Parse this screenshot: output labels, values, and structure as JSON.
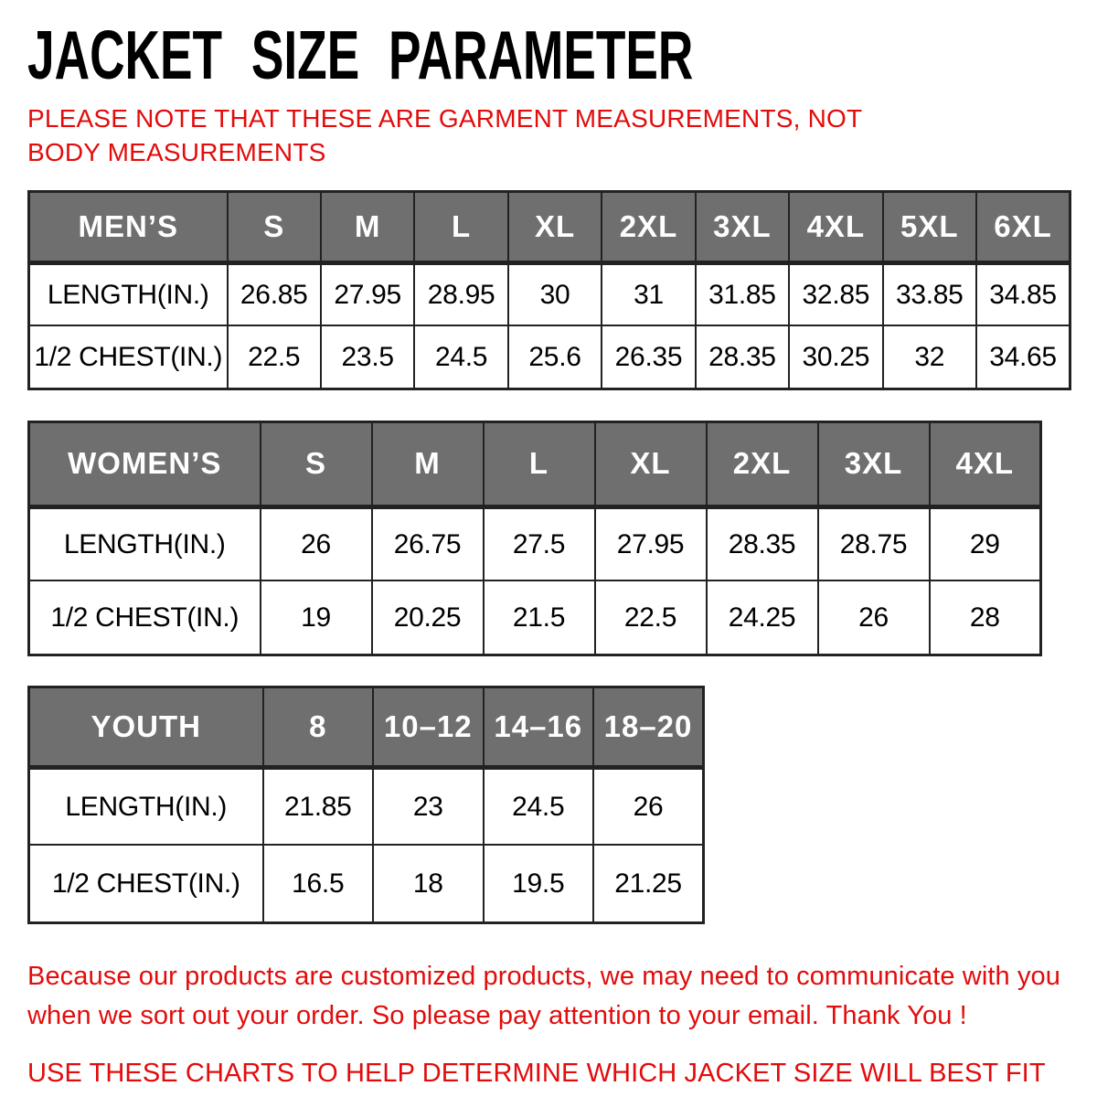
{
  "page": {
    "title": "JACKET SIZE PARAMETER",
    "note_line": "PLEASE NOTE THAT THESE ARE GARMENT MEASUREMENTS, NOT BODY MEASUREMENTS",
    "footer_para": "Because our products are customized products, we may need to communicate with you when we sort out your order. So please pay attention to your email. Thank You !",
    "footer_line": "USE THESE CHARTS TO HELP DETERMINE WHICH JACKET SIZE WILL BEST FIT YOU."
  },
  "colors": {
    "accent_red": "#e20c0c",
    "header_gray": "#6f6f6f",
    "border_dark": "#222222",
    "header_text": "#ffffff"
  },
  "chart_data": [
    {
      "type": "table",
      "title": "MEN’S",
      "columns": [
        "MEN’S",
        "S",
        "M",
        "L",
        "XL",
        "2XL",
        "3XL",
        "4XL",
        "5XL",
        "6XL"
      ],
      "rows": [
        [
          "LENGTH(IN.)",
          "26.85",
          "27.95",
          "28.95",
          "30",
          "31",
          "31.85",
          "32.85",
          "33.85",
          "34.85"
        ],
        [
          "1/2 CHEST(IN.)",
          "22.5",
          "23.5",
          "24.5",
          "25.6",
          "26.35",
          "28.35",
          "30.25",
          "32",
          "34.65"
        ]
      ]
    },
    {
      "type": "table",
      "title": "WOMEN’S",
      "columns": [
        "WOMEN’S",
        "S",
        "M",
        "L",
        "XL",
        "2XL",
        "3XL",
        "4XL"
      ],
      "rows": [
        [
          "LENGTH(IN.)",
          "26",
          "26.75",
          "27.5",
          "27.95",
          "28.35",
          "28.75",
          "29"
        ],
        [
          "1/2 CHEST(IN.)",
          "19",
          "20.25",
          "21.5",
          "22.5",
          "24.25",
          "26",
          "28"
        ]
      ]
    },
    {
      "type": "table",
      "title": "YOUTH",
      "columns": [
        "YOUTH",
        "8",
        "10–12",
        "14–16",
        "18–20"
      ],
      "rows": [
        [
          "LENGTH(IN.)",
          "21.85",
          "23",
          "24.5",
          "26"
        ],
        [
          "1/2 CHEST(IN.)",
          "16.5",
          "18",
          "19.5",
          "21.25"
        ]
      ]
    }
  ]
}
